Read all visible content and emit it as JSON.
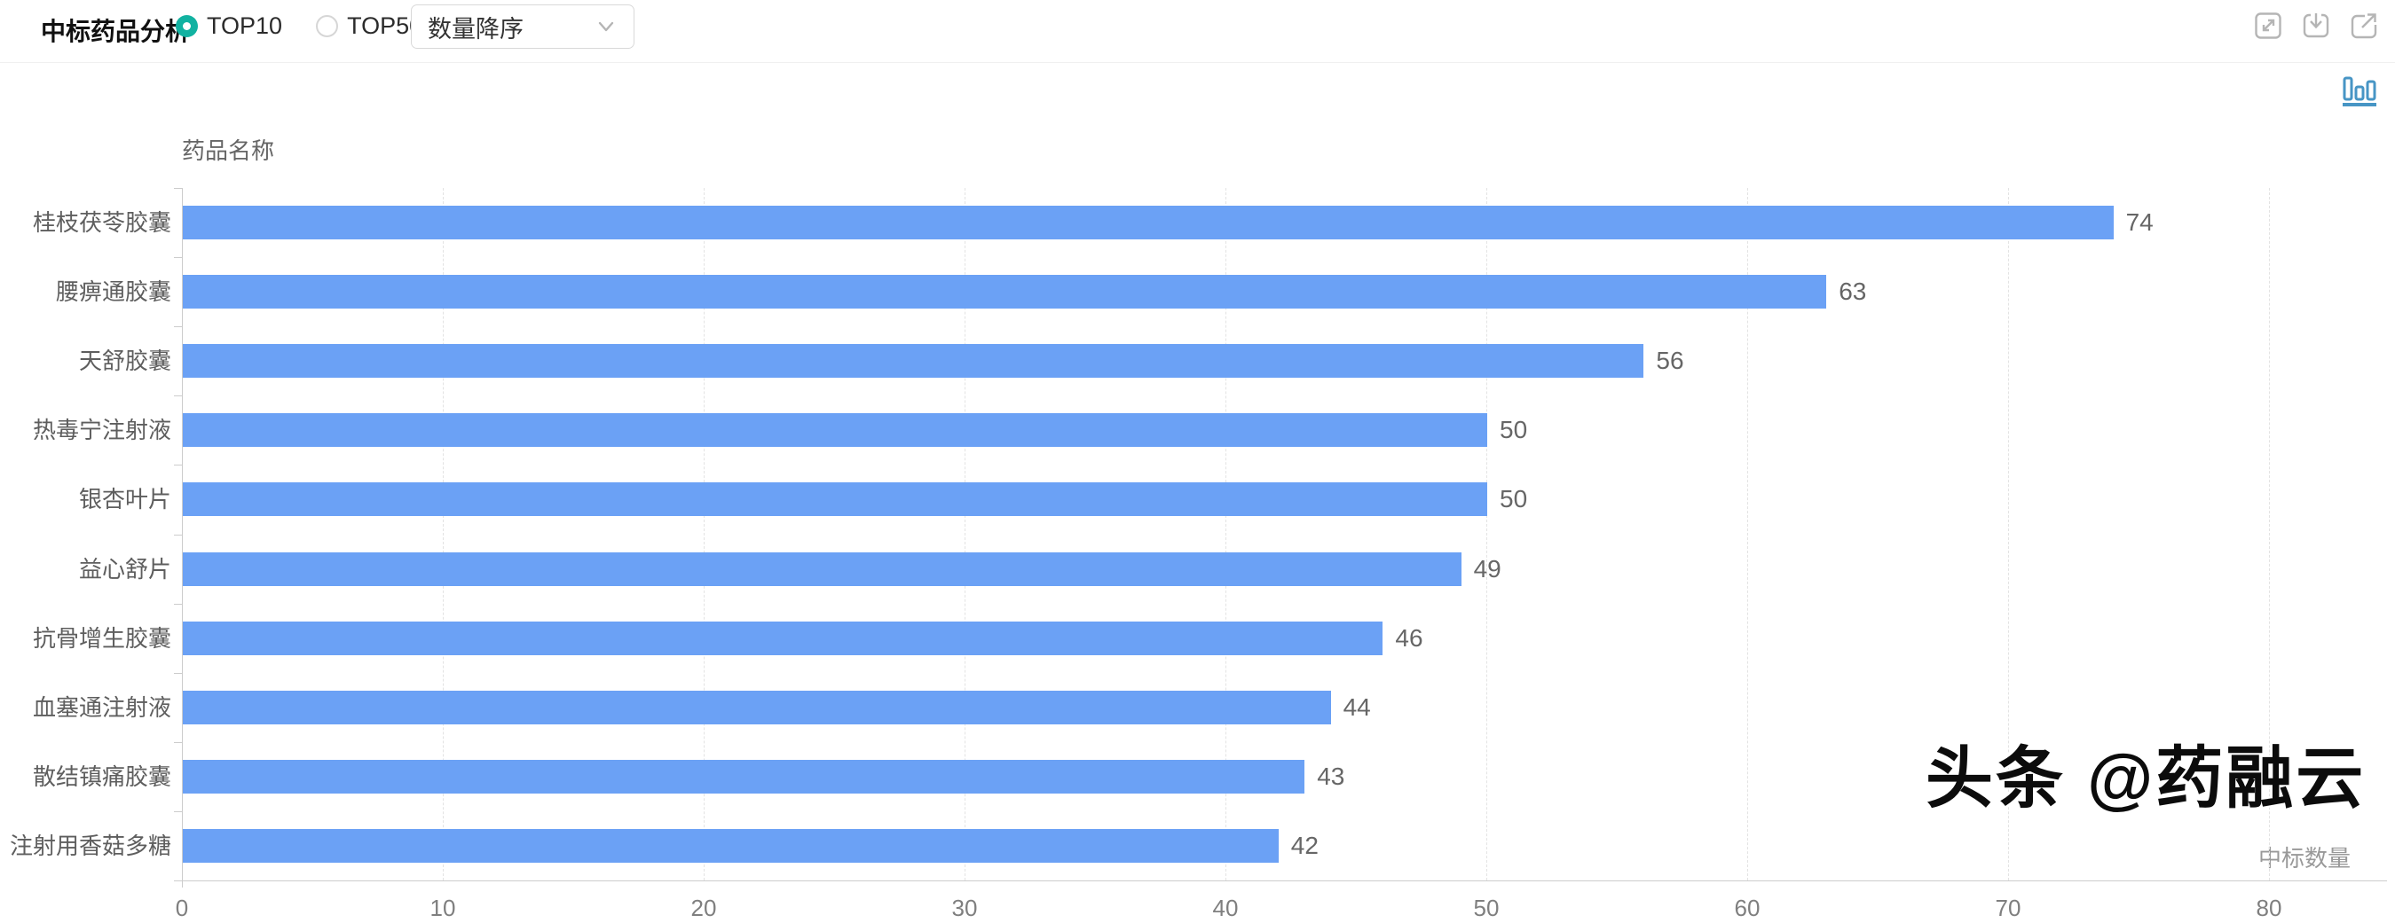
{
  "header": {
    "title": "中标药品分析",
    "radios": [
      {
        "label": "TOP10",
        "selected": true
      },
      {
        "label": "TOP50",
        "selected": false
      }
    ],
    "sort_select": {
      "value": "数量降序"
    },
    "action_icons": [
      {
        "name": "fullscreen-icon"
      },
      {
        "name": "download-icon"
      },
      {
        "name": "open-external-icon"
      }
    ]
  },
  "chart_toolbar": {
    "chart_type_icon": "bar-chart-icon"
  },
  "chart_data": {
    "type": "bar",
    "orientation": "horizontal",
    "y_axis_name": "药品名称",
    "x_axis_name": "中标数量",
    "categories": [
      "桂枝茯苓胶囊",
      "腰痹通胶囊",
      "天舒胶囊",
      "热毒宁注射液",
      "银杏叶片",
      "益心舒片",
      "抗骨增生胶囊",
      "血塞通注射液",
      "散结镇痛胶囊",
      "注射用香菇多糖"
    ],
    "values": [
      74,
      63,
      56,
      50,
      50,
      49,
      46,
      44,
      43,
      42
    ],
    "xlim": [
      0,
      80
    ],
    "x_ticks": [
      0,
      10,
      20,
      30,
      40,
      50,
      60,
      70,
      80
    ],
    "grid": "dashed-vertical",
    "legend": "none",
    "bar_color": "#6ba1f5",
    "value_label_color": "#666666",
    "tick_label_color": "#7f7f7f",
    "category_label_color": "#5e5e5e",
    "axis_line_color": "#cccccc",
    "grid_color": "#e3e3e3"
  },
  "watermark": {
    "text": "头条 @药融云"
  },
  "colors": {
    "accent_teal": "#12b2a1",
    "icon_gray": "#b5b5b5",
    "chart_icon_blue": "#4795c5"
  }
}
